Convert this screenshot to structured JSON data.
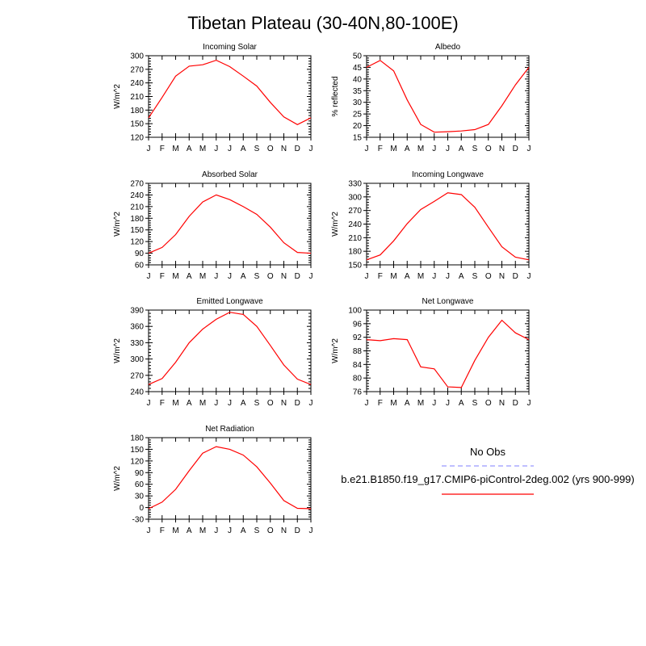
{
  "title": "Tibetan Plateau (30-40N,80-100E)",
  "legend": {
    "obs_label": "No Obs",
    "obs_color": "#9999ff",
    "model_label": "b.e21.B1850.f19_g17.CMIP6-piControl-2deg.002 (yrs 900-999)",
    "model_color": "#ff0000"
  },
  "chart_data": [
    {
      "type": "line",
      "title": "Incoming Solar",
      "ylabel": "W/m^2",
      "ylim": [
        120,
        300
      ],
      "yticks": [
        120,
        150,
        180,
        210,
        240,
        270,
        300
      ],
      "x": [
        "J",
        "F",
        "M",
        "A",
        "M",
        "J",
        "J",
        "A",
        "S",
        "O",
        "N",
        "D",
        "J"
      ],
      "series": [
        {
          "color": "#ff0000",
          "values": [
            163,
            208,
            255,
            277,
            280,
            290,
            276,
            255,
            233,
            197,
            165,
            148,
            163
          ]
        }
      ]
    },
    {
      "type": "line",
      "title": "Albedo",
      "ylabel": "% reflected",
      "ylim": [
        15,
        50
      ],
      "yticks": [
        15,
        20,
        25,
        30,
        35,
        40,
        45,
        50
      ],
      "x": [
        "J",
        "F",
        "M",
        "A",
        "M",
        "J",
        "J",
        "A",
        "S",
        "O",
        "N",
        "D",
        "J"
      ],
      "series": [
        {
          "color": "#ff0000",
          "values": [
            45,
            48,
            43.5,
            31,
            20.5,
            17.2,
            17.4,
            17.7,
            18.3,
            20.5,
            28.5,
            37.5,
            45
          ]
        }
      ]
    },
    {
      "type": "line",
      "title": "Absorbed Solar",
      "ylabel": "W/m^2",
      "ylim": [
        60,
        270
      ],
      "yticks": [
        60,
        90,
        120,
        150,
        180,
        210,
        240,
        270
      ],
      "x": [
        "J",
        "F",
        "M",
        "A",
        "M",
        "J",
        "J",
        "A",
        "S",
        "O",
        "N",
        "D",
        "J"
      ],
      "series": [
        {
          "color": "#ff0000",
          "values": [
            90,
            105,
            138,
            185,
            222,
            240,
            228,
            210,
            190,
            157,
            117,
            92,
            90
          ]
        }
      ]
    },
    {
      "type": "line",
      "title": "Incoming Longwave",
      "ylabel": "W/m^2",
      "ylim": [
        150,
        330
      ],
      "yticks": [
        150,
        180,
        210,
        240,
        270,
        300,
        330
      ],
      "x": [
        "J",
        "F",
        "M",
        "A",
        "M",
        "J",
        "J",
        "A",
        "S",
        "O",
        "N",
        "D",
        "J"
      ],
      "series": [
        {
          "color": "#ff0000",
          "values": [
            161,
            172,
            203,
            241,
            272,
            290,
            309,
            305,
            277,
            233,
            190,
            167,
            161
          ]
        }
      ]
    },
    {
      "type": "line",
      "title": "Emitted Longwave",
      "ylabel": "W/m^2",
      "ylim": [
        240,
        390
      ],
      "yticks": [
        240,
        270,
        300,
        330,
        360,
        390
      ],
      "x": [
        "J",
        "F",
        "M",
        "A",
        "M",
        "J",
        "J",
        "A",
        "S",
        "O",
        "N",
        "D",
        "J"
      ],
      "series": [
        {
          "color": "#ff0000",
          "values": [
            253,
            264,
            294,
            330,
            355,
            373,
            386,
            382,
            360,
            325,
            289,
            263,
            253
          ]
        }
      ]
    },
    {
      "type": "line",
      "title": "Net Longwave",
      "ylabel": "W/m^2",
      "ylim": [
        76,
        100
      ],
      "yticks": [
        76,
        80,
        84,
        88,
        92,
        96,
        100
      ],
      "x": [
        "J",
        "F",
        "M",
        "A",
        "M",
        "J",
        "J",
        "A",
        "S",
        "O",
        "N",
        "D",
        "J"
      ],
      "series": [
        {
          "color": "#ff0000",
          "values": [
            91.3,
            91,
            91.6,
            91.3,
            83.3,
            82.7,
            77.4,
            77.2,
            85.2,
            92,
            97,
            93.3,
            91.3
          ]
        }
      ]
    },
    {
      "type": "line",
      "title": "Net Radiation",
      "ylabel": "W/m^2",
      "ylim": [
        -30,
        180
      ],
      "yticks": [
        -30,
        0,
        30,
        60,
        90,
        120,
        150,
        180
      ],
      "x": [
        "J",
        "F",
        "M",
        "A",
        "M",
        "J",
        "J",
        "A",
        "S",
        "O",
        "N",
        "D",
        "J"
      ],
      "series": [
        {
          "color": "#ff0000",
          "values": [
            -3,
            14,
            47,
            95,
            140,
            157,
            150,
            135,
            105,
            63,
            18,
            -2,
            -3
          ]
        }
      ]
    }
  ]
}
